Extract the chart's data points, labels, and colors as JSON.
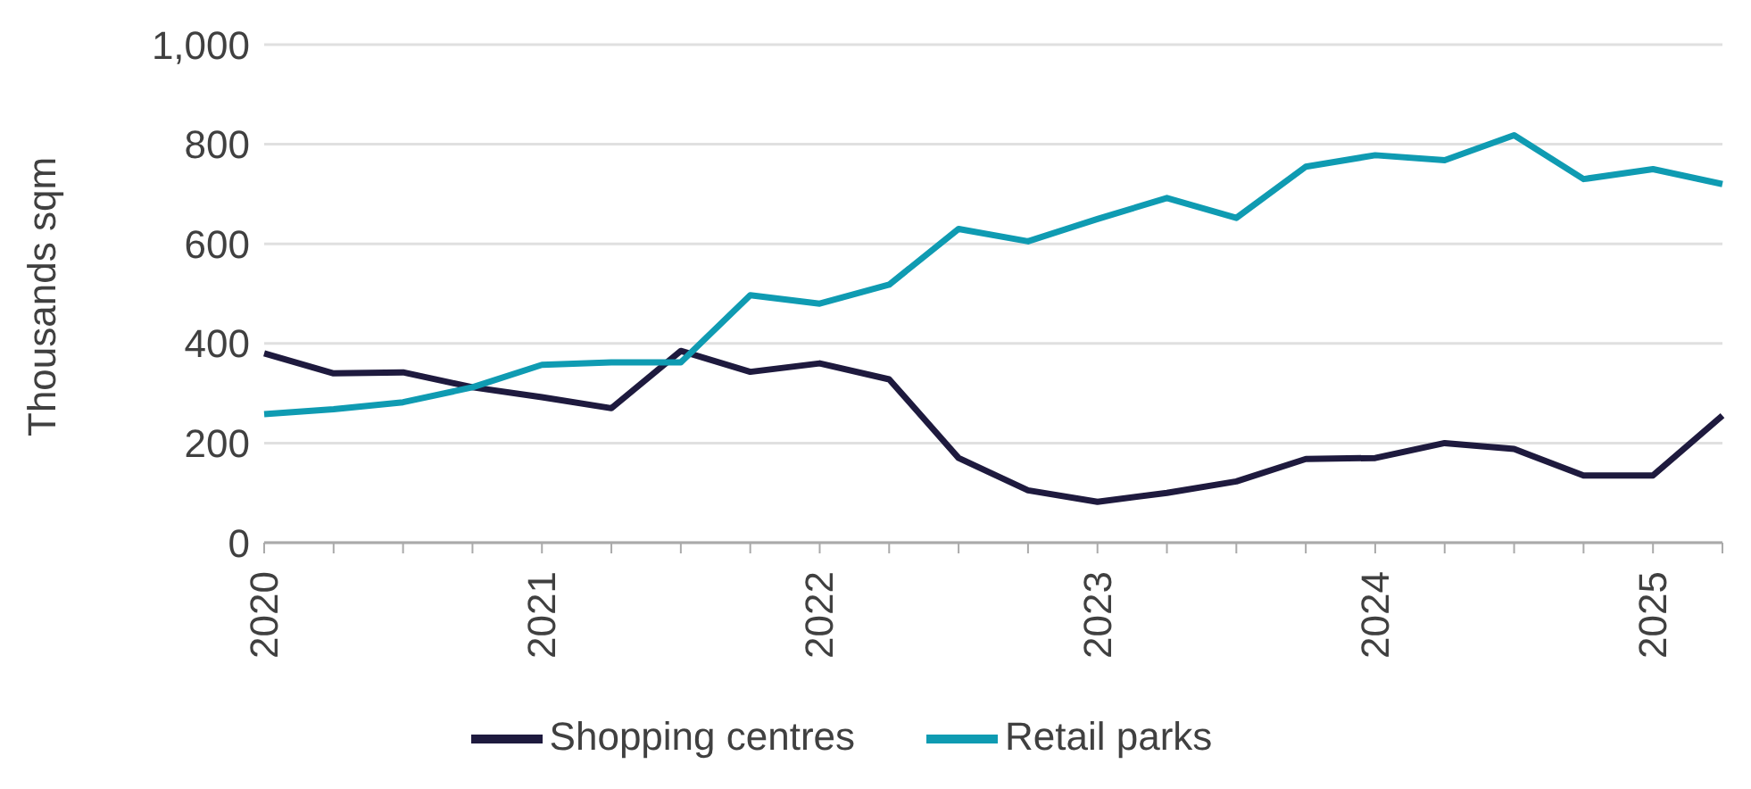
{
  "chart_data": {
    "type": "line",
    "ylabel": "Thousands sqm",
    "categories": [
      "2020",
      null,
      null,
      null,
      "2021",
      null,
      null,
      null,
      "2022",
      null,
      null,
      null,
      "2023",
      null,
      null,
      null,
      "2024",
      null,
      null,
      null,
      "2025",
      null
    ],
    "series": [
      {
        "name": "Shopping centres",
        "color": "#1e1a3e",
        "values": [
          380,
          340,
          342,
          312,
          292,
          270,
          385,
          343,
          360,
          328,
          170,
          105,
          82,
          100,
          123,
          168,
          170,
          200,
          188,
          135,
          135,
          255
        ]
      },
      {
        "name": "Retail parks",
        "color": "#0f9bb2",
        "values": [
          258,
          268,
          282,
          312,
          357,
          362,
          362,
          497,
          480,
          518,
          630,
          605,
          650,
          692,
          652,
          755,
          778,
          768,
          818,
          730,
          750,
          720
        ]
      }
    ],
    "ylim": [
      0,
      1000
    ],
    "yticks": [
      0,
      200,
      400,
      600,
      800,
      {
        "value": 1000,
        "label": "1,000"
      }
    ],
    "grid": "y",
    "legend": "bottom",
    "marker": "none",
    "line_style": "solid"
  }
}
